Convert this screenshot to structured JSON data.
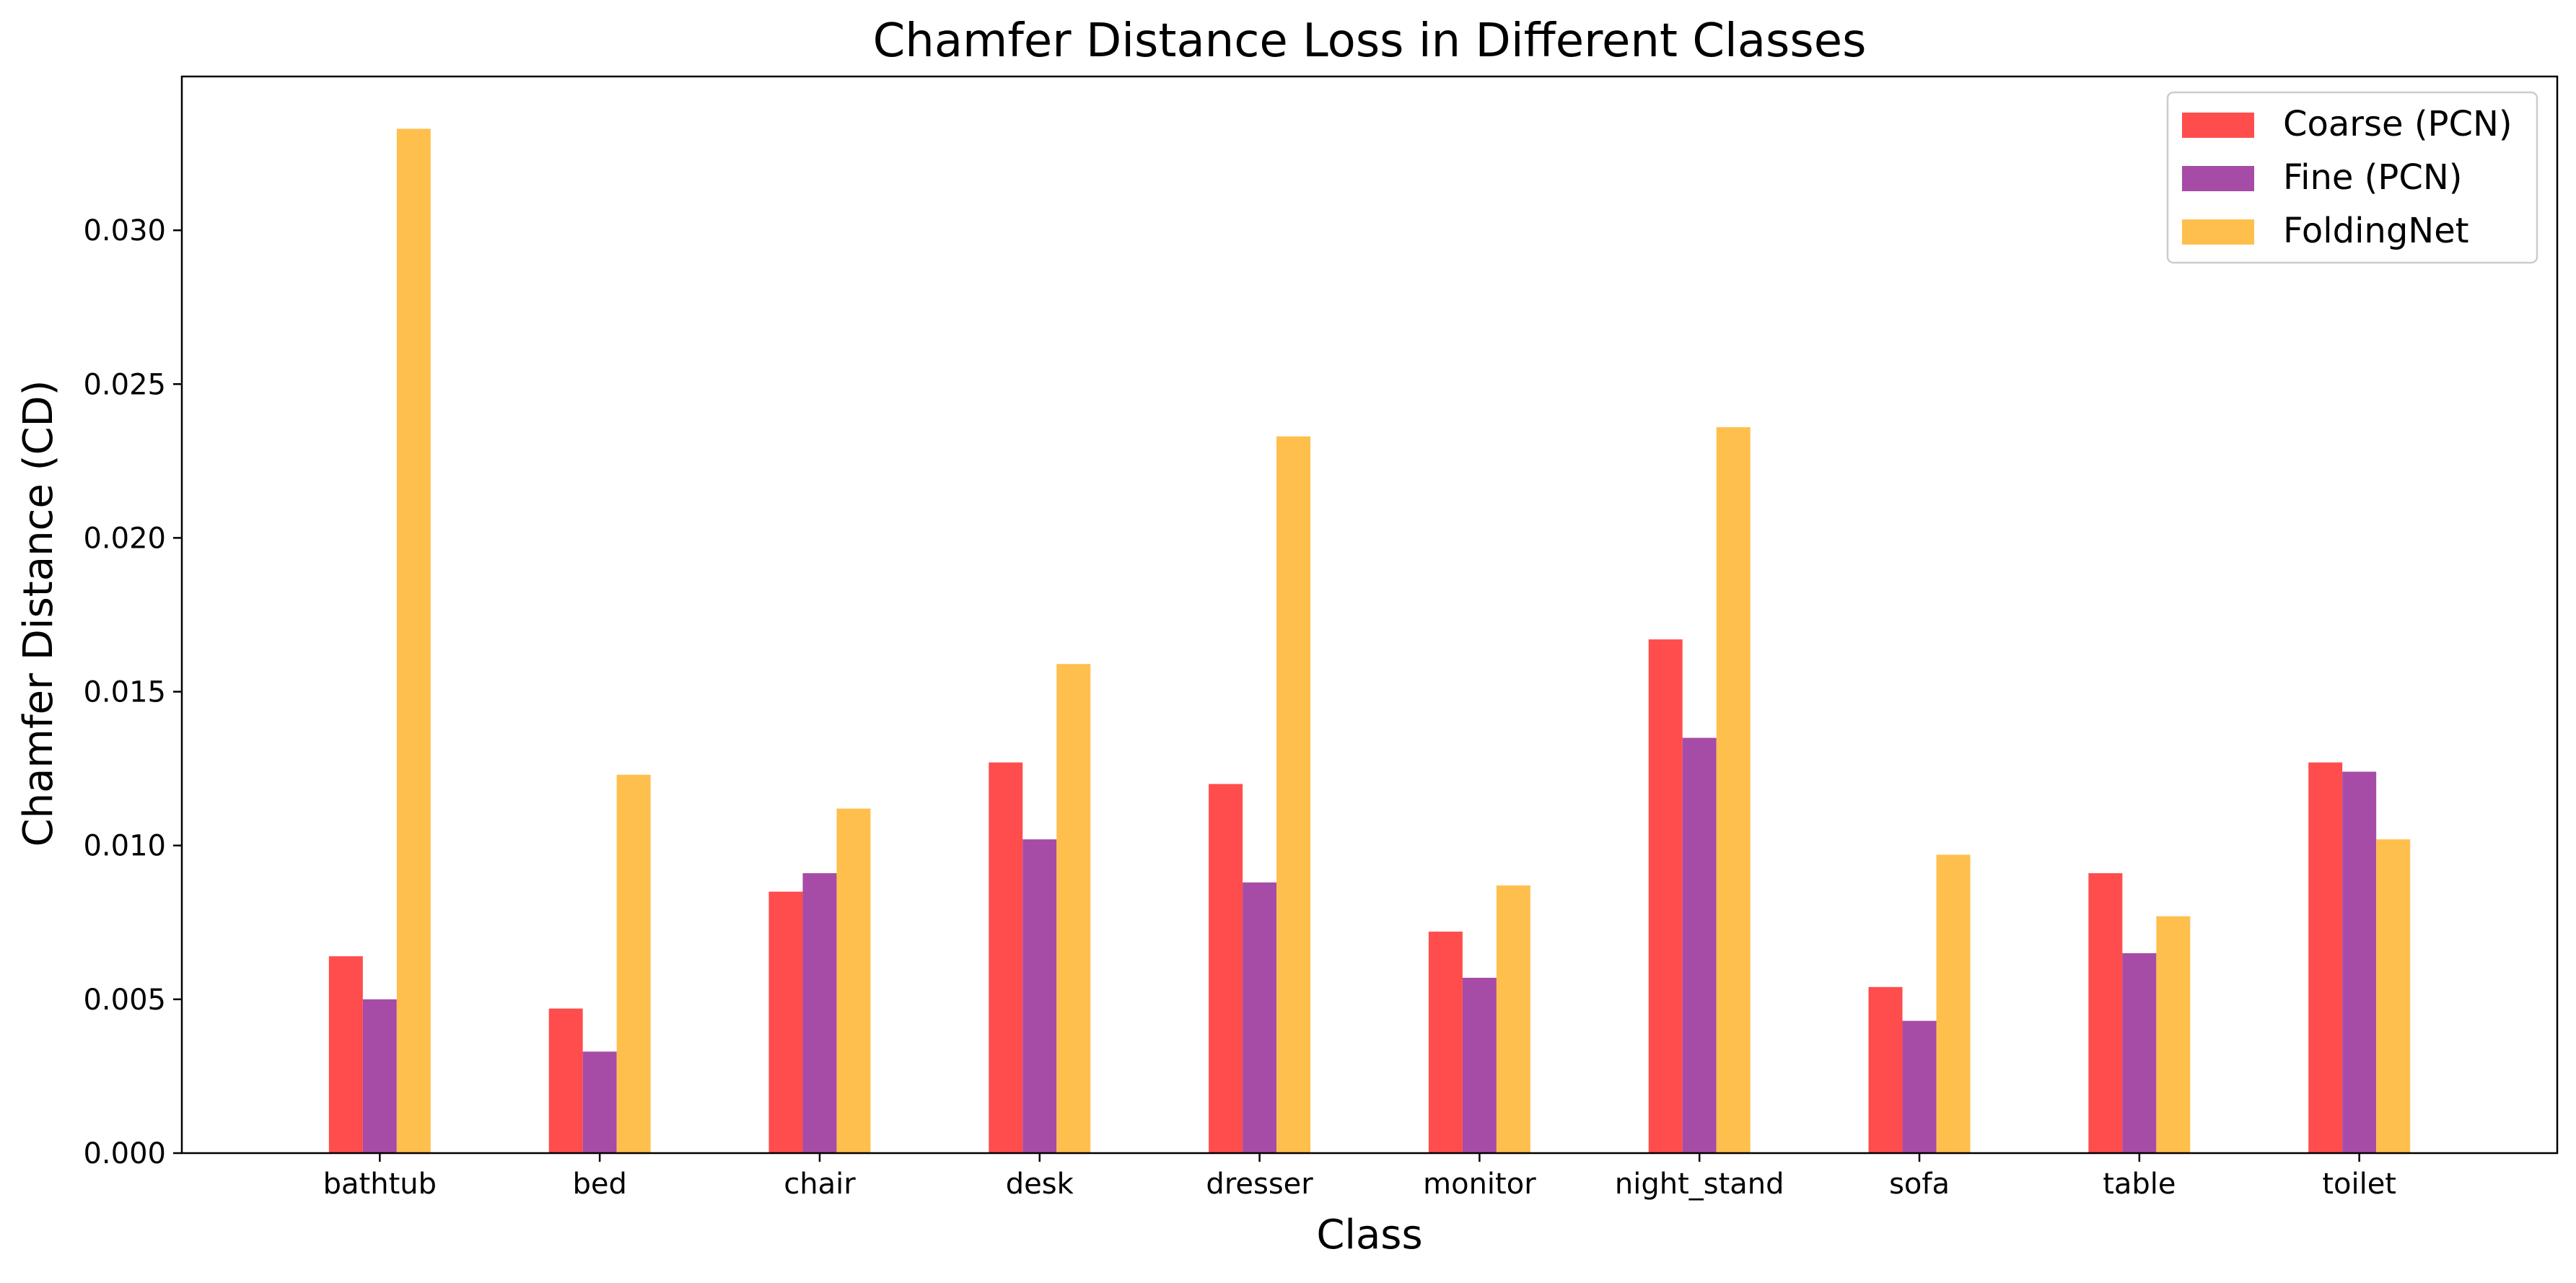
{
  "chart_data": {
    "type": "bar",
    "title": "Chamfer Distance Loss in Different Classes",
    "xlabel": "Class",
    "ylabel": "Chamfer Distance (CD)",
    "categories": [
      "bathtub",
      "bed",
      "chair",
      "desk",
      "dresser",
      "monitor",
      "night_stand",
      "sofa",
      "table",
      "toilet"
    ],
    "series": [
      {
        "name": "Coarse (PCN)",
        "color": "#ff4d4d",
        "values": [
          0.0064,
          0.0047,
          0.0085,
          0.0127,
          0.012,
          0.0072,
          0.0167,
          0.0054,
          0.0091,
          0.0127
        ]
      },
      {
        "name": "Fine (PCN)",
        "color": "#a64ca6",
        "values": [
          0.005,
          0.0033,
          0.0091,
          0.0102,
          0.0088,
          0.0057,
          0.0135,
          0.0043,
          0.0065,
          0.0124
        ]
      },
      {
        "name": "FoldingNet",
        "color": "#ffbf4d",
        "values": [
          0.0333,
          0.0123,
          0.0112,
          0.0159,
          0.0233,
          0.0087,
          0.0236,
          0.0097,
          0.0077,
          0.0102
        ]
      }
    ],
    "ylim": [
      0,
      0.035
    ],
    "yticks": [
      "0.000",
      "0.005",
      "0.010",
      "0.015",
      "0.020",
      "0.025",
      "0.030"
    ],
    "grid": false,
    "legend_position": "top-right"
  }
}
